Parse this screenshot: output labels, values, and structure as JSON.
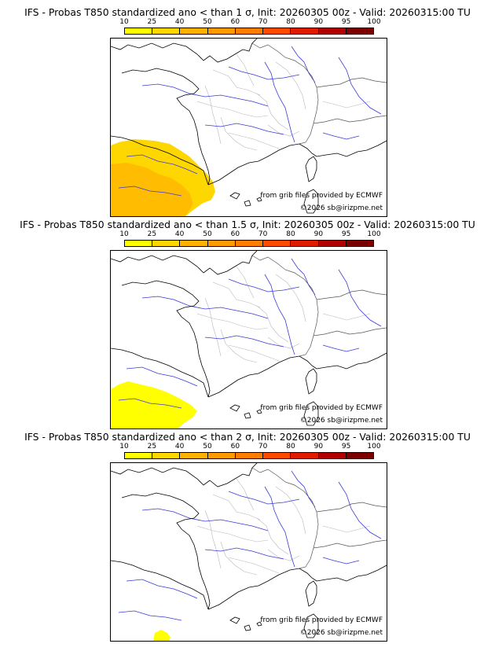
{
  "legend": {
    "ticks": [
      "10",
      "25",
      "40",
      "50",
      "60",
      "70",
      "80",
      "90",
      "95",
      "100"
    ],
    "colors": [
      "#ffff00",
      "#ffd700",
      "#ffb300",
      "#ff9a00",
      "#ff7d00",
      "#ff4a00",
      "#e01b00",
      "#b00000",
      "#7d0000"
    ]
  },
  "panels": [
    {
      "title": "IFS - Probas T850  standardized ano < than 1 σ, Init: 20260305 00z - Valid: 20260315:00 TU",
      "threshold": "1 σ",
      "credit_source": "from grib files provided by ECMWF",
      "credit_copyright": "©2026 sb@irizpme.net",
      "probability_area": "south-west (Spain)",
      "probability_color": "#ffd700"
    },
    {
      "title": "IFS - Probas T850  standardized ano < than 1.5 σ, Init: 20260305 00z - Valid: 20260315:00 TU",
      "threshold": "1.5 σ",
      "credit_source": "from grib files provided by ECMWF",
      "credit_copyright": "©2026 sb@irizpme.net",
      "probability_area": "south-west (Spain)",
      "probability_color": "#ffff00"
    },
    {
      "title": "IFS - Probas T850  standardized ano < than 2 σ, Init: 20260305 00z - Valid: 20260315:00 TU",
      "threshold": "2 σ",
      "credit_source": "from grib files provided by ECMWF",
      "credit_copyright": "©2026 sb@irizpme.net",
      "probability_area": "small patch south-west",
      "probability_color": "#ffff00"
    }
  ]
}
